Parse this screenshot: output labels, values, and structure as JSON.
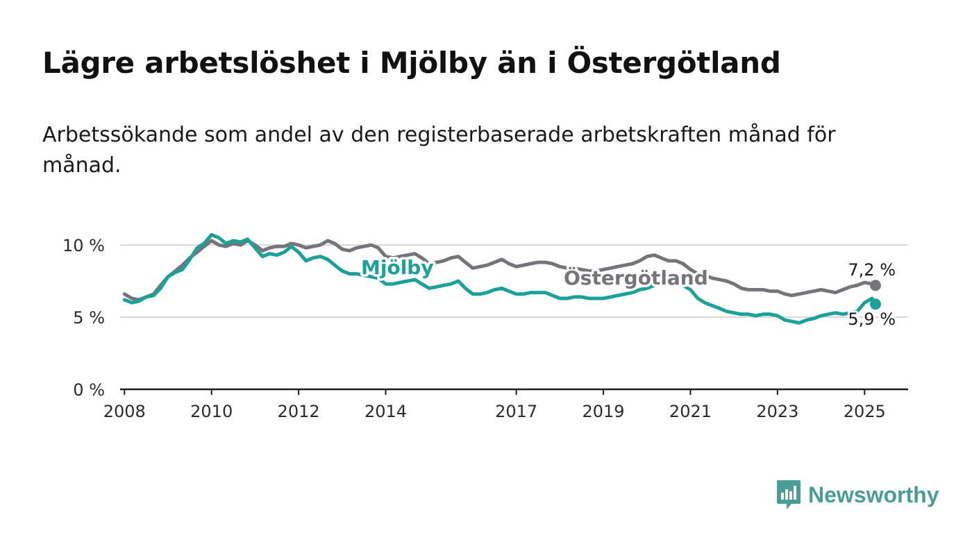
{
  "title": "Lägre arbetslöshet i Mjölby än i Östergötland",
  "subtitle": "Arbetssökande som andel av den registerbaserade arbetskraften månad för månad.",
  "brand": {
    "name": "Newsworthy",
    "color": "#4a9d97"
  },
  "colors": {
    "mjolby": "#19a19a",
    "ostergotland": "#76737a",
    "grid": "#d9d9d9",
    "axis": "#1a1a1a"
  },
  "chart_data": {
    "type": "line",
    "title": "Lägre arbetslöshet i Mjölby än i Östergötland",
    "subtitle": "Arbetssökande som andel av den registerbaserade arbetskraften månad för månad.",
    "xlabel": "",
    "ylabel": "",
    "xlim": [
      2007.9,
      2026.0
    ],
    "ylim": [
      0,
      10
    ],
    "y_ticks": [
      {
        "value": 0,
        "label": "0 %"
      },
      {
        "value": 5,
        "label": "5 %"
      },
      {
        "value": 10,
        "label": "10 %"
      }
    ],
    "x_ticks": [
      {
        "value": 2008,
        "label": "2008"
      },
      {
        "value": 2010,
        "label": "2010"
      },
      {
        "value": 2012,
        "label": "2012"
      },
      {
        "value": 2014,
        "label": "2014"
      },
      {
        "value": 2017,
        "label": "2017"
      },
      {
        "value": 2019,
        "label": "2019"
      },
      {
        "value": 2021,
        "label": "2021"
      },
      {
        "value": 2023,
        "label": "2023"
      },
      {
        "value": 2025,
        "label": "2025"
      }
    ],
    "grid": "horizontal",
    "legend": "direct labels on lines",
    "series": [
      {
        "name": "Östergötland",
        "color": "#76737a",
        "end_label": "7,2 %",
        "x": [
          2008.0,
          2008.17,
          2008.33,
          2008.5,
          2008.67,
          2008.83,
          2009.0,
          2009.17,
          2009.33,
          2009.5,
          2009.67,
          2009.83,
          2010.0,
          2010.17,
          2010.33,
          2010.5,
          2010.67,
          2010.83,
          2011.0,
          2011.17,
          2011.33,
          2011.5,
          2011.67,
          2011.83,
          2012.0,
          2012.17,
          2012.33,
          2012.5,
          2012.67,
          2012.83,
          2013.0,
          2013.17,
          2013.33,
          2013.5,
          2013.67,
          2013.83,
          2014.0,
          2014.17,
          2014.33,
          2014.5,
          2014.67,
          2014.83,
          2015.0,
          2015.17,
          2015.33,
          2015.5,
          2015.67,
          2015.83,
          2016.0,
          2016.17,
          2016.33,
          2016.5,
          2016.67,
          2016.83,
          2017.0,
          2017.17,
          2017.33,
          2017.5,
          2017.67,
          2017.83,
          2018.0,
          2018.17,
          2018.33,
          2018.5,
          2018.67,
          2018.83,
          2019.0,
          2019.17,
          2019.33,
          2019.5,
          2019.67,
          2019.83,
          2020.0,
          2020.17,
          2020.33,
          2020.5,
          2020.67,
          2020.83,
          2021.0,
          2021.17,
          2021.33,
          2021.5,
          2021.67,
          2021.83,
          2022.0,
          2022.17,
          2022.33,
          2022.5,
          2022.67,
          2022.83,
          2023.0,
          2023.17,
          2023.33,
          2023.5,
          2023.67,
          2023.83,
          2024.0,
          2024.17,
          2024.33,
          2024.5,
          2024.67,
          2024.83,
          2025.0,
          2025.17,
          2025.25
        ],
        "values": [
          6.6,
          6.3,
          6.2,
          6.4,
          6.6,
          7.2,
          7.8,
          8.2,
          8.6,
          9.1,
          9.5,
          9.9,
          10.3,
          10.0,
          9.9,
          10.1,
          10.0,
          10.3,
          10.0,
          9.6,
          9.8,
          9.9,
          9.9,
          10.1,
          10.0,
          9.8,
          9.9,
          10.0,
          10.3,
          10.1,
          9.7,
          9.6,
          9.8,
          9.9,
          10.0,
          9.8,
          9.2,
          9.1,
          9.2,
          9.3,
          9.4,
          9.1,
          8.7,
          8.8,
          8.9,
          9.1,
          9.2,
          8.8,
          8.4,
          8.5,
          8.6,
          8.8,
          9.0,
          8.7,
          8.5,
          8.6,
          8.7,
          8.8,
          8.8,
          8.7,
          8.5,
          8.4,
          8.4,
          8.3,
          8.2,
          8.2,
          8.3,
          8.4,
          8.5,
          8.6,
          8.7,
          8.9,
          9.2,
          9.3,
          9.1,
          8.9,
          8.9,
          8.7,
          8.3,
          8.0,
          7.9,
          7.7,
          7.6,
          7.5,
          7.3,
          7.0,
          6.9,
          6.9,
          6.9,
          6.8,
          6.8,
          6.6,
          6.5,
          6.6,
          6.7,
          6.8,
          6.9,
          6.8,
          6.7,
          6.9,
          7.1,
          7.2,
          7.4,
          7.3,
          7.2
        ]
      },
      {
        "name": "Mjölby",
        "color": "#19a19a",
        "end_label": "5,9 %",
        "x": [
          2008.0,
          2008.17,
          2008.33,
          2008.5,
          2008.67,
          2008.83,
          2009.0,
          2009.17,
          2009.33,
          2009.5,
          2009.67,
          2009.83,
          2010.0,
          2010.17,
          2010.33,
          2010.5,
          2010.67,
          2010.83,
          2011.0,
          2011.17,
          2011.33,
          2011.5,
          2011.67,
          2011.83,
          2012.0,
          2012.17,
          2012.33,
          2012.5,
          2012.67,
          2012.83,
          2013.0,
          2013.17,
          2013.33,
          2013.5,
          2013.67,
          2013.83,
          2014.0,
          2014.17,
          2014.33,
          2014.5,
          2014.67,
          2014.83,
          2015.0,
          2015.17,
          2015.33,
          2015.5,
          2015.67,
          2015.83,
          2016.0,
          2016.17,
          2016.33,
          2016.5,
          2016.67,
          2016.83,
          2017.0,
          2017.17,
          2017.33,
          2017.5,
          2017.67,
          2017.83,
          2018.0,
          2018.17,
          2018.33,
          2018.5,
          2018.67,
          2018.83,
          2019.0,
          2019.17,
          2019.33,
          2019.5,
          2019.67,
          2019.83,
          2020.0,
          2020.17,
          2020.33,
          2020.5,
          2020.67,
          2020.83,
          2021.0,
          2021.17,
          2021.33,
          2021.5,
          2021.67,
          2021.83,
          2022.0,
          2022.17,
          2022.33,
          2022.5,
          2022.67,
          2022.83,
          2023.0,
          2023.17,
          2023.33,
          2023.5,
          2023.67,
          2023.83,
          2024.0,
          2024.17,
          2024.33,
          2024.5,
          2024.67,
          2024.83,
          2025.0,
          2025.17,
          2025.25
        ],
        "values": [
          6.2,
          6.0,
          6.1,
          6.4,
          6.5,
          7.0,
          7.8,
          8.1,
          8.3,
          9.0,
          9.8,
          10.1,
          10.7,
          10.5,
          10.1,
          10.3,
          10.2,
          10.4,
          9.8,
          9.2,
          9.4,
          9.3,
          9.5,
          9.9,
          9.5,
          8.9,
          9.1,
          9.2,
          9.0,
          8.6,
          8.2,
          8.0,
          8.0,
          7.9,
          7.8,
          7.7,
          7.3,
          7.3,
          7.4,
          7.5,
          7.6,
          7.3,
          7.0,
          7.1,
          7.2,
          7.3,
          7.5,
          7.0,
          6.6,
          6.6,
          6.7,
          6.9,
          7.0,
          6.8,
          6.6,
          6.6,
          6.7,
          6.7,
          6.7,
          6.5,
          6.3,
          6.3,
          6.4,
          6.4,
          6.3,
          6.3,
          6.3,
          6.4,
          6.5,
          6.6,
          6.7,
          6.9,
          7.0,
          7.2,
          7.3,
          7.4,
          7.5,
          7.2,
          6.9,
          6.3,
          6.0,
          5.8,
          5.6,
          5.4,
          5.3,
          5.2,
          5.2,
          5.1,
          5.2,
          5.2,
          5.1,
          4.8,
          4.7,
          4.6,
          4.8,
          4.9,
          5.1,
          5.2,
          5.3,
          5.2,
          5.3,
          5.4,
          6.0,
          6.3,
          5.9
        ]
      }
    ]
  }
}
